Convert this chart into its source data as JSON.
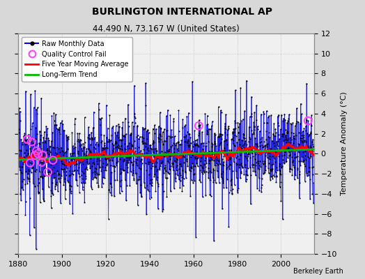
{
  "title": "BURLINGTON INTERNATIONAL AP",
  "subtitle": "44.490 N, 73.167 W (United States)",
  "ylabel": "Temperature Anomaly (°C)",
  "credit": "Berkeley Earth",
  "xlim": [
    1880,
    2015
  ],
  "ylim": [
    -10,
    12
  ],
  "yticks": [
    -10,
    -8,
    -6,
    -4,
    -2,
    0,
    2,
    4,
    6,
    8,
    10,
    12
  ],
  "xticks": [
    1880,
    1900,
    1920,
    1940,
    1960,
    1980,
    2000
  ],
  "start_year": 1880,
  "end_year": 2014,
  "seed": 17,
  "raw_color": "#0000dd",
  "moving_avg_color": "#ff0000",
  "trend_color": "#00bb00",
  "qc_color": "#ff44ff",
  "plot_bg_color": "#f0f0f0",
  "fig_bg_color": "#d8d8d8",
  "legend_labels": [
    "Raw Monthly Data",
    "Quality Control Fail",
    "Five Year Moving Average",
    "Long-Term Trend"
  ]
}
